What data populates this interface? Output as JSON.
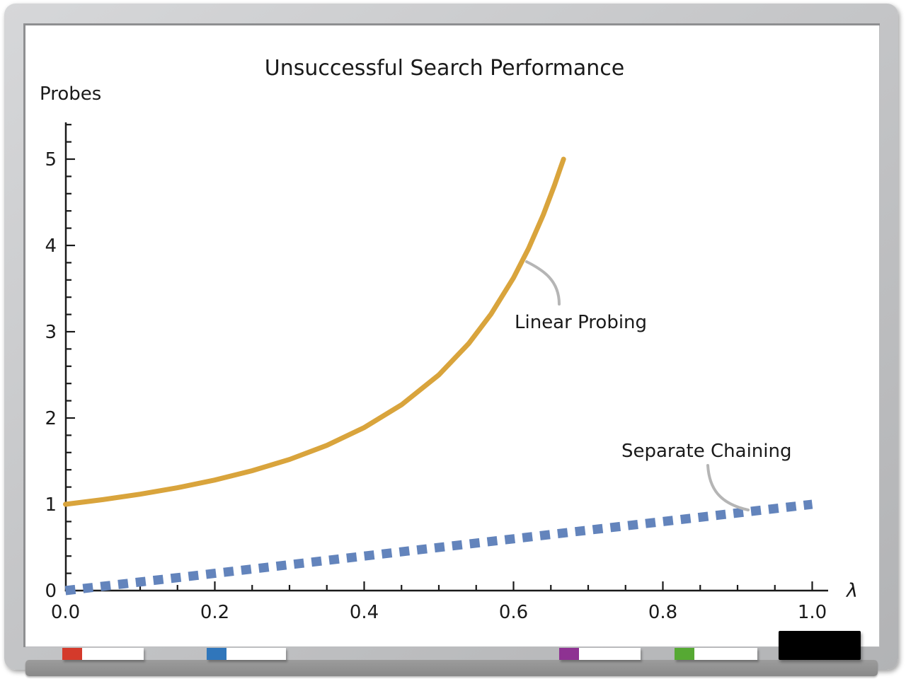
{
  "chart_data": {
    "type": "line",
    "title": "Unsuccessful Search Performance",
    "xlabel": "λ",
    "ylabel": "Probes",
    "xlim": [
      0,
      1.02
    ],
    "ylim": [
      0,
      5.42
    ],
    "grid": false,
    "x_ticks": {
      "values": [
        0,
        0.2,
        0.4,
        0.6,
        0.8,
        1.0
      ],
      "labels": [
        "0.0",
        "0.2",
        "0.4",
        "0.6",
        "0.8",
        "1.0"
      ],
      "minor_step": 0.05
    },
    "y_ticks": {
      "values": [
        0,
        1,
        2,
        3,
        4,
        5
      ],
      "labels": [
        "0",
        "1",
        "2",
        "3",
        "4",
        "5"
      ],
      "minor_step": 0.2,
      "minor_max": 5.4
    },
    "series": [
      {
        "name": "Linear Probing",
        "color": "#D9A43C",
        "line_style": "solid",
        "stroke_width": 7,
        "points": [
          [
            0,
            1
          ],
          [
            0.05,
            1.054
          ],
          [
            0.1,
            1.117
          ],
          [
            0.15,
            1.192
          ],
          [
            0.2,
            1.281
          ],
          [
            0.25,
            1.389
          ],
          [
            0.3,
            1.52
          ],
          [
            0.35,
            1.683
          ],
          [
            0.4,
            1.889
          ],
          [
            0.45,
            2.153
          ],
          [
            0.5,
            2.5
          ],
          [
            0.54,
            2.863
          ],
          [
            0.57,
            3.205
          ],
          [
            0.6,
            3.625
          ],
          [
            0.62,
            3.962
          ],
          [
            0.64,
            4.358
          ],
          [
            0.655,
            4.701
          ],
          [
            0.662,
            4.877
          ],
          [
            0.667,
            5.0
          ]
        ]
      },
      {
        "name": "Separate Chaining",
        "color": "#6384BC",
        "line_style": "square-dash",
        "stroke_width": 13,
        "points": [
          [
            0,
            0
          ],
          [
            0.2,
            0.2
          ],
          [
            0.4,
            0.4
          ],
          [
            0.6,
            0.6
          ],
          [
            0.8,
            0.8
          ],
          [
            1,
            1
          ]
        ]
      }
    ],
    "annotations": [
      {
        "label": "Linear Probing"
      },
      {
        "label": "Separate Chaining"
      }
    ],
    "leader_color": "#B5B5B5",
    "axis_color": "#1A1A1A"
  },
  "tray": {
    "markers": [
      {
        "name": "red marker",
        "tip_color": "#D43A2B"
      },
      {
        "name": "blue marker",
        "tip_color": "#3076BB"
      },
      {
        "name": "purple marker",
        "tip_color": "#8E3292"
      },
      {
        "name": "green marker",
        "tip_color": "#56A933"
      }
    ],
    "eraser_color": "#000000"
  }
}
